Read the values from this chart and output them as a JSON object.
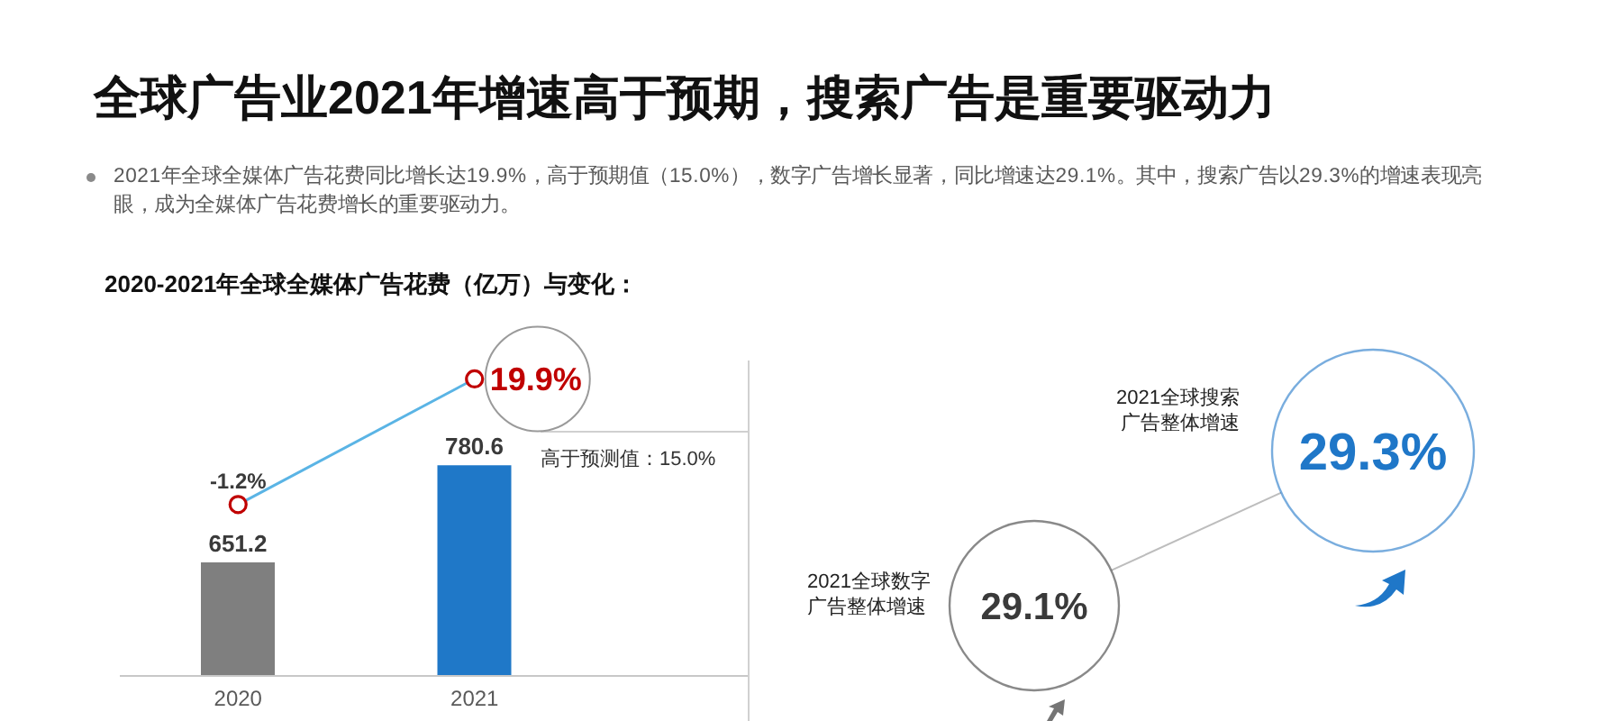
{
  "chart_data": [
    {
      "type": "other",
      "title": "全球广告业2021年增速高于预期，搜索广告是重要驱动力",
      "subtitle": "2021年全球全媒体广告花费同比增长达19.9%，高于预期值（15.0%），数字广告增长显著，同比增速达29.1%。其中，搜索广告以29.3%的增速表现亮眼，成为全媒体广告花费增长的重要驱动力。"
    },
    {
      "type": "bar",
      "title": "2020-2021年全球全媒体广告花费（亿万）与变化：",
      "categories": [
        "2020",
        "2021"
      ],
      "series": [
        {
          "type": "bar",
          "colors": [
            "#7f7f7f",
            "#1f78c8"
          ],
          "values": [
            651.2,
            780.6
          ],
          "value_labels": [
            "651.2",
            "780.6"
          ]
        },
        {
          "type": "line",
          "axis": "y2",
          "color": "#5ab4e5",
          "colors": [
            "#c00000",
            "#c00000"
          ],
          "values": [
            -1.2,
            19.9
          ],
          "value_labels": [
            "-1.2%",
            "19.9%"
          ]
        }
      ],
      "ylim": [
        500,
        920
      ],
      "y2lim": [
        -30,
        23
      ],
      "tick_labels": "x",
      "marker": "circle",
      "annotations": [
        "高于预测值：15.0%"
      ]
    },
    {
      "type": "other",
      "categories": [
        "2021全球搜索广告整体增速",
        "2021全球数字广告整体增速"
      ],
      "value_labels": [
        "29.3%",
        "29.1%"
      ],
      "colors": [
        "#1f77c8",
        "#3a3a3a"
      ]
    }
  ]
}
